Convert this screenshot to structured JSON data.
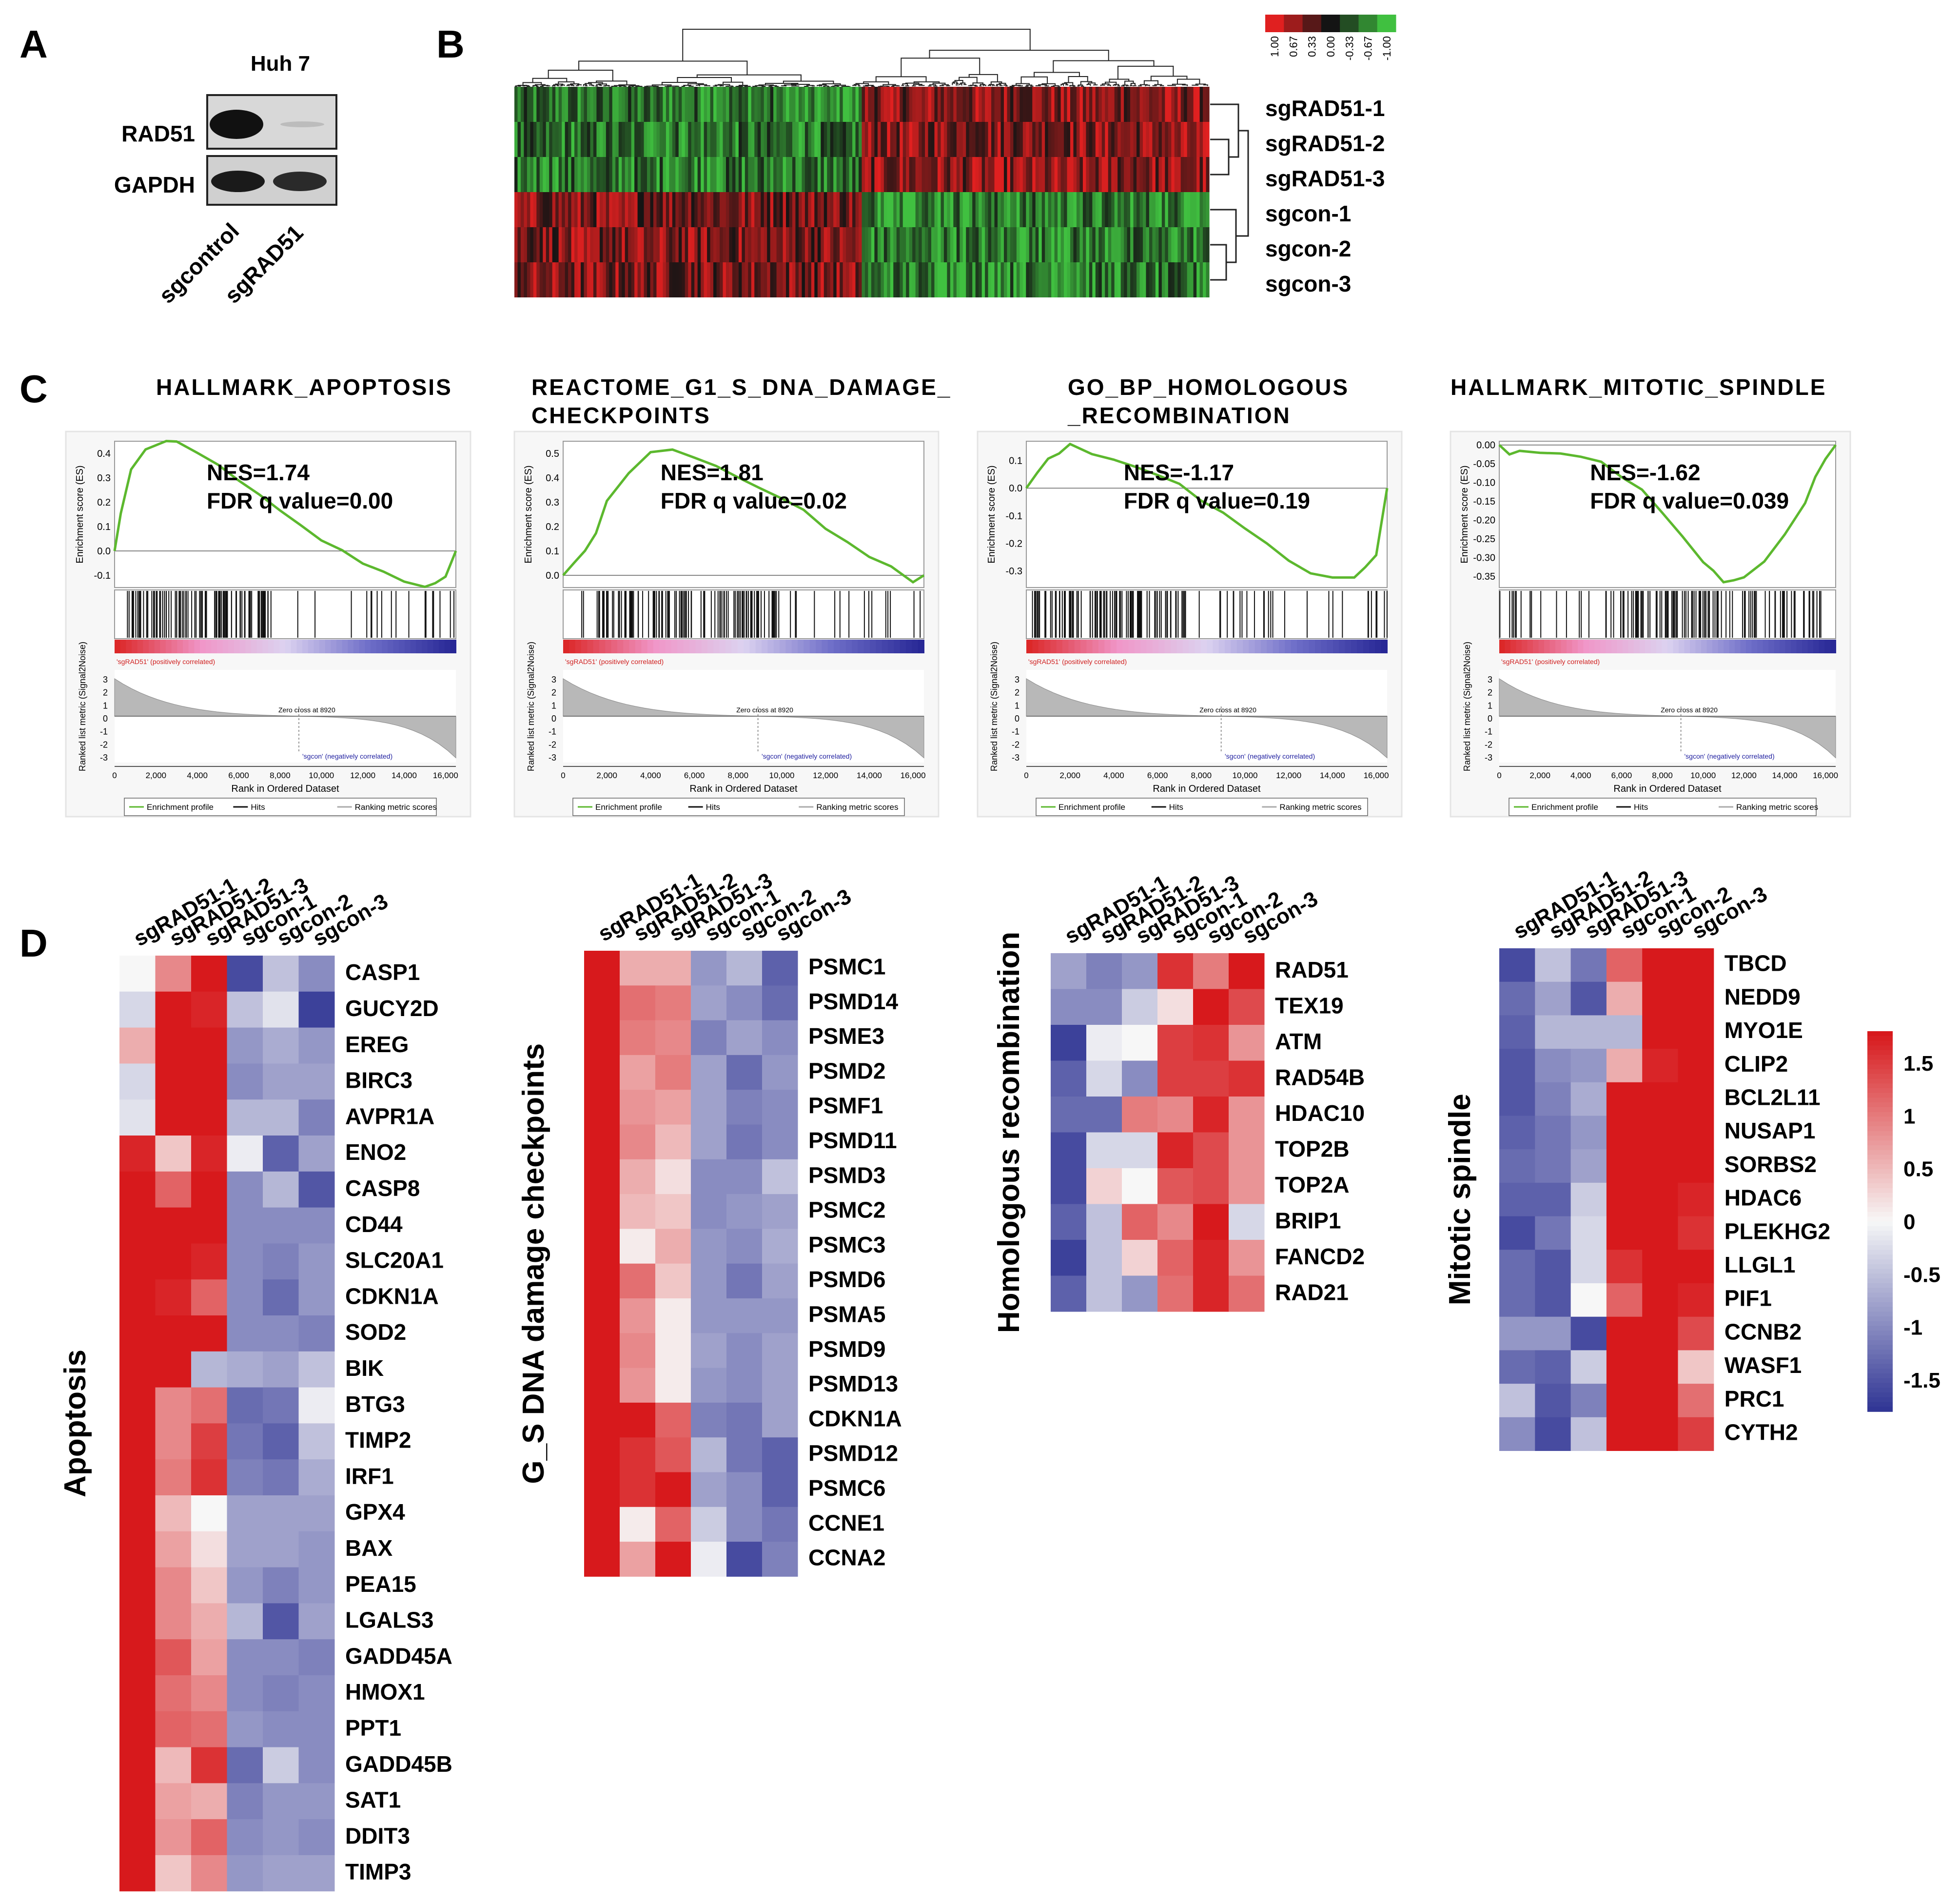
{
  "panels": {
    "a": "A",
    "b": "B",
    "c": "C",
    "d": "D"
  },
  "western_blot": {
    "cell_line": "Huh 7",
    "proteins": [
      "RAD51",
      "GAPDH"
    ],
    "lanes": [
      "sgcontrol",
      "sgRAD51"
    ]
  },
  "cluster_heatmap": {
    "samples": [
      "sgRAD51-1",
      "sgRAD51-2",
      "sgRAD51-3",
      "sgcon-1",
      "sgcon-2",
      "sgcon-3"
    ],
    "scale_ticks": [
      "1.00",
      "0.67",
      "0.33",
      "0.00",
      "-0.33",
      "-0.67",
      "-1.00"
    ],
    "colors": {
      "high": "#e02020",
      "mid": "#111111",
      "low": "#40c040"
    }
  },
  "gsea": {
    "common": {
      "ylabel_top": "Enrichment score (ES)",
      "ylabel_bottom": "Ranked list metric (Signal2Noise)",
      "xlabel": "Rank in Ordered Dataset",
      "pos_label": "'sgRAD51' (positively correlated)",
      "neg_label": "'sgcon' (negatively correlated)",
      "zero_cross": "Zero cross at 8920",
      "x_ticks": [
        "0",
        "2,000",
        "4,000",
        "6,000",
        "8,000",
        "10,000",
        "12,000",
        "14,000",
        "16,000"
      ],
      "rank_ticks": [
        "3",
        "2",
        "1",
        "0",
        "-1",
        "-2",
        "-3"
      ],
      "legend": [
        "Enrichment profile",
        "Hits",
        "Ranking metric scores"
      ]
    },
    "plots": [
      {
        "title_line1": "HALLMARK_APOPTOSIS",
        "title_line2": "",
        "nes": "NES=1.74",
        "fdr": "FDR q value=0.00",
        "es_ticks": [
          "0.4",
          "0.3",
          "0.2",
          "0.1",
          "0.0",
          "-0.1"
        ]
      },
      {
        "title_line1": "REACTOME_G1_S_DNA_DAMAGE_",
        "title_line2": "CHECKPOINTS",
        "nes": "NES=1.81",
        "fdr": "FDR q value=0.02",
        "es_ticks": [
          "0.5",
          "0.4",
          "0.3",
          "0.2",
          "0.1",
          "0.0"
        ]
      },
      {
        "title_line1": "GO_BP_HOMOLOGOUS",
        "title_line2": "_RECOMBINATION",
        "nes": "NES=-1.17",
        "fdr": "FDR q value=0.19",
        "es_ticks": [
          "0.1",
          "0.0",
          "-0.1",
          "-0.2",
          "-0.3"
        ]
      },
      {
        "title_line1": "HALLMARK_MITOTIC_SPINDLE",
        "title_line2": "",
        "nes": "NES=-1.62",
        "fdr": "FDR q value=0.039",
        "es_ticks": [
          "0.00",
          "-0.05",
          "-0.10",
          "-0.15",
          "-0.20",
          "-0.25",
          "-0.30",
          "-0.35"
        ]
      }
    ]
  },
  "chart_data": [
    {
      "type": "line",
      "title": "HALLMARK_APOPTOSIS",
      "xlabel": "Rank in Ordered Dataset",
      "ylabel": "Enrichment score (ES)",
      "xlim": [
        0,
        16500
      ],
      "ylim": [
        -0.15,
        0.45
      ],
      "x": [
        0,
        300,
        800,
        1500,
        2500,
        3000,
        4000,
        5000,
        6000,
        7000,
        8000,
        9000,
        10000,
        11000,
        12000,
        13000,
        14000,
        15000,
        15500,
        16000,
        16500
      ],
      "y": [
        0.0,
        0.15,
        0.33,
        0.41,
        0.45,
        0.44,
        0.4,
        0.35,
        0.29,
        0.23,
        0.17,
        0.11,
        0.05,
        0.0,
        -0.05,
        -0.09,
        -0.12,
        -0.14,
        -0.13,
        -0.11,
        0.0
      ]
    },
    {
      "type": "line",
      "title": "REACTOME_G1_S_DNA_DAMAGE_CHECKPOINTS",
      "xlabel": "Rank in Ordered Dataset",
      "ylabel": "Enrichment score (ES)",
      "xlim": [
        0,
        16500
      ],
      "ylim": [
        -0.05,
        0.55
      ],
      "x": [
        0,
        500,
        1000,
        1500,
        2000,
        3000,
        4000,
        5000,
        6000,
        7000,
        8000,
        9000,
        10000,
        11000,
        12000,
        13000,
        14000,
        15000,
        16000,
        16500
      ],
      "y": [
        0.0,
        0.05,
        0.1,
        0.18,
        0.3,
        0.42,
        0.5,
        0.52,
        0.49,
        0.44,
        0.4,
        0.36,
        0.31,
        0.26,
        0.2,
        0.14,
        0.08,
        0.03,
        -0.02,
        0.0
      ]
    },
    {
      "type": "line",
      "title": "GO_BP_HOMOLOGOUS_RECOMBINATION",
      "xlabel": "Rank in Ordered Dataset",
      "ylabel": "Enrichment score (ES)",
      "xlim": [
        0,
        16500
      ],
      "ylim": [
        -0.36,
        0.17
      ],
      "x": [
        0,
        500,
        1000,
        1500,
        2000,
        3000,
        4000,
        5000,
        6000,
        7000,
        8000,
        9000,
        10000,
        11000,
        12000,
        13000,
        14000,
        15000,
        15500,
        16000,
        16500
      ],
      "y": [
        0.0,
        0.05,
        0.1,
        0.12,
        0.16,
        0.13,
        0.1,
        0.07,
        0.04,
        0.01,
        -0.04,
        -0.09,
        -0.14,
        -0.2,
        -0.26,
        -0.31,
        -0.33,
        -0.32,
        -0.29,
        -0.25,
        0.0
      ]
    },
    {
      "type": "line",
      "title": "HALLMARK_MITOTIC_SPINDLE",
      "xlabel": "Rank in Ordered Dataset",
      "ylabel": "Enrichment score (ES)",
      "xlim": [
        0,
        16500
      ],
      "ylim": [
        -0.38,
        0.01
      ],
      "x": [
        0,
        500,
        1000,
        2000,
        3000,
        4000,
        5000,
        6000,
        7000,
        8000,
        9000,
        10000,
        10500,
        11000,
        11500,
        12000,
        13000,
        14000,
        15000,
        15500,
        16000,
        16500
      ],
      "y": [
        0.0,
        -0.02,
        -0.01,
        -0.02,
        -0.02,
        -0.03,
        -0.05,
        -0.08,
        -0.12,
        -0.18,
        -0.25,
        -0.31,
        -0.34,
        -0.36,
        -0.36,
        -0.35,
        -0.31,
        -0.24,
        -0.15,
        -0.08,
        -0.04,
        0.0
      ]
    }
  ],
  "heatmaps": {
    "scale_ticks": [
      "1.5",
      "1",
      "0.5",
      "0",
      "-0.5",
      "-1",
      "-1.5"
    ],
    "columns": [
      "sgRAD51-1",
      "sgRAD51-2",
      "sgRAD51-3",
      "sgcon-1",
      "sgcon-2",
      "sgcon-3"
    ],
    "groups": [
      {
        "title": "Apoptosis",
        "genes": [
          "CASP1",
          "GUCY2D",
          "EREG",
          "BIRC3",
          "AVPR1A",
          "ENO2",
          "CASP8",
          "CD44",
          "SLC20A1",
          "CDKN1A",
          "SOD2",
          "BIK",
          "BTG3",
          "TIMP2",
          "IRF1",
          "GPX4",
          "BAX",
          "PEA15",
          "LGALS3",
          "GADD45A",
          "HMOX1",
          "PPT1",
          "GADD45B",
          "SAT1",
          "DDIT3",
          "TIMP3"
        ],
        "values": [
          [
            0.0,
            0.9,
            1.8,
            -1.6,
            -0.5,
            -1.0
          ],
          [
            -0.3,
            1.8,
            1.7,
            -0.5,
            -0.2,
            -1.7
          ],
          [
            0.6,
            1.8,
            1.8,
            -0.9,
            -0.7,
            -0.9
          ],
          [
            -0.3,
            1.9,
            1.8,
            -1.0,
            -0.8,
            -0.8
          ],
          [
            -0.2,
            1.9,
            1.8,
            -0.6,
            -0.6,
            -1.1
          ],
          [
            1.7,
            0.4,
            1.7,
            -0.1,
            -1.4,
            -0.8
          ],
          [
            1.8,
            1.2,
            1.9,
            -1.0,
            -0.6,
            -1.5
          ],
          [
            1.8,
            1.8,
            1.8,
            -1.0,
            -1.0,
            -1.0
          ],
          [
            1.8,
            1.8,
            1.7,
            -1.0,
            -1.1,
            -0.9
          ],
          [
            1.8,
            1.7,
            1.2,
            -1.0,
            -1.3,
            -0.9
          ],
          [
            1.8,
            1.8,
            1.8,
            -1.0,
            -1.0,
            -1.1
          ],
          [
            1.8,
            1.8,
            -0.6,
            -0.7,
            -0.8,
            -0.5
          ],
          [
            1.8,
            0.9,
            1.1,
            -1.3,
            -1.2,
            -0.1
          ],
          [
            1.8,
            0.9,
            1.5,
            -1.2,
            -1.4,
            -0.5
          ],
          [
            1.8,
            1.0,
            1.6,
            -1.1,
            -1.2,
            -0.7
          ],
          [
            1.9,
            0.5,
            0.0,
            -0.8,
            -0.8,
            -0.8
          ],
          [
            1.9,
            0.7,
            0.2,
            -0.8,
            -0.8,
            -0.9
          ],
          [
            1.9,
            0.9,
            0.4,
            -0.9,
            -1.1,
            -0.9
          ],
          [
            1.8,
            0.9,
            0.6,
            -0.6,
            -1.5,
            -0.8
          ],
          [
            1.8,
            1.3,
            0.7,
            -1.0,
            -1.0,
            -1.1
          ],
          [
            1.8,
            1.1,
            0.9,
            -1.0,
            -1.1,
            -1.0
          ],
          [
            1.8,
            1.2,
            1.1,
            -0.9,
            -1.0,
            -1.0
          ],
          [
            1.8,
            0.5,
            1.6,
            -1.3,
            -0.4,
            -1.0
          ],
          [
            1.9,
            0.7,
            0.6,
            -1.1,
            -0.9,
            -0.9
          ],
          [
            1.9,
            0.8,
            1.2,
            -1.0,
            -0.9,
            -1.0
          ],
          [
            1.9,
            0.4,
            0.9,
            -0.9,
            -0.8,
            -0.8
          ]
        ]
      },
      {
        "title": "G_S DNA damage checkpoints",
        "genes": [
          "PSMC1",
          "PSMD14",
          "PSME3",
          "PSMD2",
          "PSMF1",
          "PSMD11",
          "PSMD3",
          "PSMC2",
          "PSMC3",
          "PSMD6",
          "PSMA5",
          "PSMD9",
          "PSMD13",
          "CDKN1A",
          "PSMD12",
          "PSMC6",
          "CCNE1",
          "CCNA2"
        ],
        "values": [
          [
            1.9,
            0.6,
            0.6,
            -0.9,
            -0.6,
            -1.4
          ],
          [
            1.9,
            1.1,
            1.0,
            -0.8,
            -1.0,
            -1.3
          ],
          [
            1.9,
            1.0,
            0.9,
            -1.1,
            -0.8,
            -1.0
          ],
          [
            1.9,
            0.7,
            1.0,
            -0.8,
            -1.3,
            -0.9
          ],
          [
            1.9,
            0.8,
            0.7,
            -0.8,
            -1.1,
            -1.0
          ],
          [
            1.9,
            0.9,
            0.5,
            -0.8,
            -1.2,
            -1.0
          ],
          [
            1.9,
            0.6,
            0.2,
            -1.0,
            -1.0,
            -0.5
          ],
          [
            1.9,
            0.5,
            0.4,
            -1.0,
            -0.9,
            -0.8
          ],
          [
            1.9,
            0.1,
            0.6,
            -0.9,
            -1.0,
            -0.7
          ],
          [
            1.9,
            1.1,
            0.4,
            -0.9,
            -1.2,
            -0.8
          ],
          [
            1.9,
            0.8,
            0.1,
            -0.9,
            -0.9,
            -0.9
          ],
          [
            1.9,
            0.9,
            0.1,
            -0.8,
            -1.0,
            -0.8
          ],
          [
            1.9,
            0.8,
            0.1,
            -0.9,
            -1.0,
            -0.8
          ],
          [
            1.8,
            1.8,
            1.2,
            -1.1,
            -1.2,
            -0.8
          ],
          [
            1.8,
            1.6,
            1.3,
            -0.6,
            -1.2,
            -1.4
          ],
          [
            1.8,
            1.6,
            1.9,
            -0.8,
            -1.0,
            -1.4
          ],
          [
            1.9,
            0.1,
            1.2,
            -0.4,
            -1.0,
            -1.2
          ],
          [
            1.9,
            0.7,
            1.8,
            -0.1,
            -1.6,
            -1.1
          ]
        ]
      },
      {
        "title": "Homologous recombination",
        "genes": [
          "RAD51",
          "TEX19",
          "ATM",
          "RAD54B",
          "HDAC10",
          "TOP2B",
          "TOP2A",
          "BRIP1",
          "FANCD2",
          "RAD21"
        ],
        "values": [
          [
            -0.8,
            -1.1,
            -0.9,
            1.6,
            1.0,
            1.8
          ],
          [
            -1.0,
            -1.0,
            -0.4,
            0.2,
            1.8,
            1.4
          ],
          [
            -1.7,
            -0.1,
            0.0,
            1.5,
            1.6,
            0.8
          ],
          [
            -1.4,
            -0.3,
            -1.0,
            1.5,
            1.5,
            1.6
          ],
          [
            -1.3,
            -1.3,
            1.0,
            0.9,
            1.7,
            0.8
          ],
          [
            -1.6,
            -0.3,
            -0.3,
            1.7,
            1.4,
            0.8
          ],
          [
            -1.6,
            0.3,
            0.0,
            1.3,
            1.4,
            0.8
          ],
          [
            -1.4,
            -0.5,
            1.2,
            0.9,
            1.8,
            -0.3
          ],
          [
            -1.7,
            -0.5,
            0.3,
            1.2,
            1.7,
            0.8
          ],
          [
            -1.4,
            -0.5,
            -0.9,
            1.1,
            1.7,
            1.1
          ]
        ]
      },
      {
        "title": "Mitotic spindle",
        "genes": [
          "TBCD",
          "NEDD9",
          "MYO1E",
          "CLIP2",
          "BCL2L11",
          "NUSAP1",
          "SORBS2",
          "HDAC6",
          "PLEKHG2",
          "LLGL1",
          "PIF1",
          "CCNB2",
          "WASF1",
          "PRC1",
          "CYTH2"
        ],
        "values": [
          [
            -1.6,
            -0.5,
            -1.2,
            1.2,
            1.8,
            1.8
          ],
          [
            -1.3,
            -0.8,
            -1.5,
            0.6,
            1.8,
            1.8
          ],
          [
            -1.4,
            -0.6,
            -0.6,
            -0.6,
            1.8,
            1.9
          ],
          [
            -1.5,
            -1.0,
            -0.9,
            0.6,
            1.7,
            1.9
          ],
          [
            -1.5,
            -1.1,
            -0.7,
            1.8,
            1.8,
            1.9
          ],
          [
            -1.4,
            -1.2,
            -0.9,
            1.8,
            1.8,
            1.8
          ],
          [
            -1.3,
            -1.2,
            -0.8,
            1.8,
            1.8,
            1.8
          ],
          [
            -1.4,
            -1.4,
            -0.4,
            1.8,
            1.8,
            1.7
          ],
          [
            -1.6,
            -1.2,
            -0.3,
            1.8,
            1.8,
            1.6
          ],
          [
            -1.3,
            -1.5,
            -0.3,
            1.6,
            1.8,
            1.8
          ],
          [
            -1.3,
            -1.5,
            0.0,
            1.2,
            1.9,
            1.7
          ],
          [
            -0.9,
            -0.9,
            -1.6,
            1.8,
            1.8,
            1.4
          ],
          [
            -1.3,
            -1.4,
            -0.4,
            1.9,
            1.8,
            0.4
          ],
          [
            -0.5,
            -1.5,
            -1.1,
            1.8,
            1.8,
            1.1
          ],
          [
            -1.0,
            -1.6,
            -0.5,
            1.8,
            1.8,
            1.5
          ]
        ]
      }
    ]
  }
}
